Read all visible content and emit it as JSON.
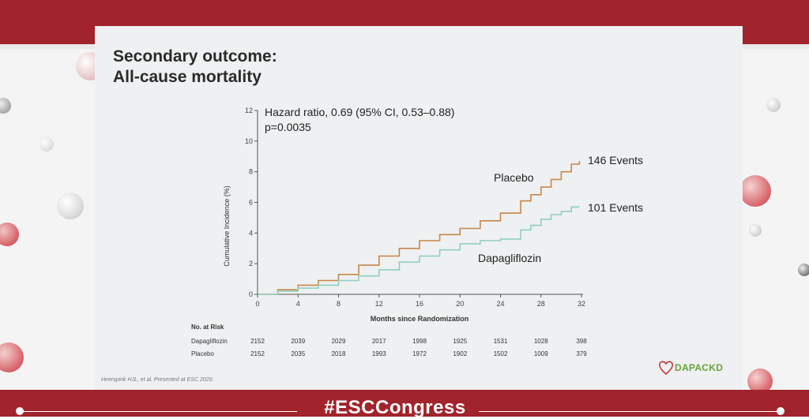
{
  "slide": {
    "title_line1": "Secondary outcome:",
    "title_line2": "All-cause mortality",
    "footnote": "Heerspink HJL, et al. Presented at ESC 2020."
  },
  "logo": {
    "text": "DAPACKD"
  },
  "event_banner": {
    "hashtag": "#ESCCongress"
  },
  "colors": {
    "placebo": "#c8864a",
    "dapagliflozin": "#8fd0c2",
    "brand_red": "#a1232b",
    "logo_green": "#6aa23b"
  },
  "chart_data": {
    "type": "line",
    "annotation_stat_1": "Hazard ratio, 0.69 (95% CI, 0.53–0.88)",
    "annotation_stat_2": "p=0.0035",
    "xlabel": "Months since Randomization",
    "ylabel": "Cumulative Incidence (%)",
    "xlim": [
      0,
      32
    ],
    "ylim": [
      0,
      12
    ],
    "x_ticks": [
      0,
      4,
      8,
      12,
      16,
      20,
      24,
      28,
      32
    ],
    "y_ticks": [
      0,
      2,
      4,
      6,
      8,
      10,
      12
    ],
    "grid": false,
    "series": [
      {
        "name": "Placebo",
        "events_label": "146 Events",
        "color": "#c8864a",
        "x": [
          0,
          2,
          4,
          6,
          8,
          10,
          12,
          14,
          16,
          18,
          20,
          22,
          24,
          26,
          27,
          28,
          29,
          30,
          31,
          31.8
        ],
        "y": [
          0,
          0.3,
          0.6,
          0.9,
          1.3,
          1.9,
          2.5,
          3.0,
          3.5,
          3.9,
          4.3,
          4.8,
          5.3,
          6.1,
          6.5,
          7.0,
          7.5,
          8.0,
          8.5,
          8.7
        ]
      },
      {
        "name": "Dapagliflozin",
        "events_label": "101 Events",
        "color": "#8fd0c2",
        "x": [
          0,
          2,
          4,
          6,
          8,
          10,
          12,
          14,
          16,
          18,
          20,
          22,
          24,
          25.5,
          26,
          27,
          28,
          29,
          30,
          31,
          31.8
        ],
        "y": [
          0,
          0.2,
          0.4,
          0.6,
          0.9,
          1.2,
          1.6,
          2.1,
          2.5,
          2.9,
          3.3,
          3.5,
          3.6,
          3.6,
          4.2,
          4.5,
          4.9,
          5.2,
          5.4,
          5.7,
          5.7
        ]
      }
    ],
    "risk_table": {
      "title": "No. at Risk",
      "rows": [
        {
          "label": "Dapagliflozin",
          "values": [
            "2152",
            "2039",
            "2029",
            "2017",
            "1998",
            "1925",
            "1531",
            "1028",
            "398"
          ]
        },
        {
          "label": "Placebo",
          "values": [
            "2152",
            "2035",
            "2018",
            "1993",
            "1972",
            "1902",
            "1502",
            "1009",
            "379"
          ]
        }
      ]
    }
  }
}
